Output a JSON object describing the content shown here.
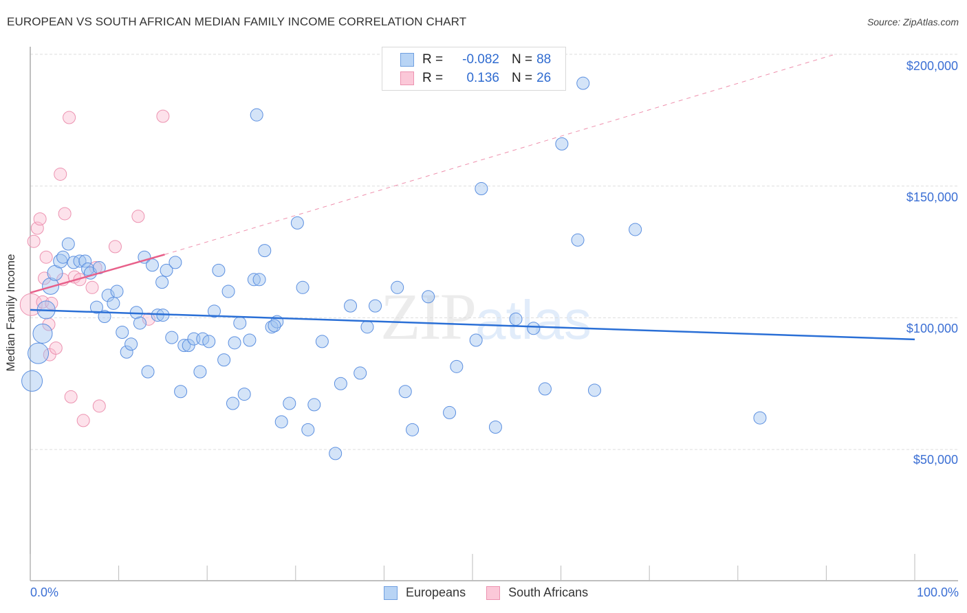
{
  "header": {
    "title": "EUROPEAN VS SOUTH AFRICAN MEDIAN FAMILY INCOME CORRELATION CHART",
    "source": "Source: ZipAtlas.com"
  },
  "legend_top": {
    "rows": [
      {
        "series": "Europeans",
        "r_label": "R =",
        "r_value": "-0.082",
        "n_label": "N =",
        "n_value": "88",
        "color": "#b8d4f5",
        "border": "#6f9fe0"
      },
      {
        "series": "South Africans",
        "r_label": "R =",
        "r_value": "0.136",
        "n_label": "N =",
        "n_value": "26",
        "color": "#fbc8d8",
        "border": "#ec92b0"
      }
    ]
  },
  "legend_bottom": {
    "items": [
      {
        "label": "Europeans",
        "color": "#b8d4f5",
        "border": "#6f9fe0"
      },
      {
        "label": "South Africans",
        "color": "#fbc8d8",
        "border": "#ec92b0"
      }
    ]
  },
  "axes": {
    "ylabel": "Median Family Income",
    "yticks": [
      "$200,000",
      "$150,000",
      "$100,000",
      "$50,000"
    ],
    "xtick_left": "0.0%",
    "xtick_right": "100.0%"
  },
  "watermark": {
    "zip": "ZIP",
    "atlas": "atlas"
  },
  "colors": {
    "europeans_fill": "rgba(160,196,240,0.45)",
    "europeans_stroke": "#5b8fe0",
    "europeans_trend": "#2a6fd6",
    "south_africans_fill": "rgba(250,190,210,0.45)",
    "south_africans_stroke": "#ec92b0",
    "south_africans_trend": "#e8608a",
    "grid": "#dddddd",
    "tick_text": "#3b6fd4"
  },
  "chart_data": {
    "type": "scatter",
    "title": "EUROPEAN VS SOUTH AFRICAN MEDIAN FAMILY INCOME CORRELATION CHART",
    "xlabel": "",
    "ylabel": "Median Family Income",
    "xlim": [
      0,
      100
    ],
    "ylim": [
      0,
      205000
    ],
    "x_tick_labels": [
      "0.0%",
      "100.0%"
    ],
    "y_tick_values": [
      50000,
      100000,
      150000,
      200000
    ],
    "y_tick_labels": [
      "$50,000",
      "$100,000",
      "$150,000",
      "$200,000"
    ],
    "grid": true,
    "legend_position": "bottom-center",
    "series": [
      {
        "name": "Europeans",
        "r": -0.082,
        "n": 88,
        "trend": {
          "x": [
            0,
            100
          ],
          "y": [
            103000,
            91800
          ]
        },
        "points": [
          [
            0.2,
            76000,
            13
          ],
          [
            0.9,
            86500,
            13
          ],
          [
            1.4,
            94000,
            12
          ],
          [
            1.8,
            103000,
            11
          ],
          [
            2.3,
            112000,
            10
          ],
          [
            2.8,
            117000,
            9
          ],
          [
            3.4,
            121500,
            8
          ],
          [
            3.7,
            123000,
            7
          ],
          [
            4.3,
            128000,
            7
          ],
          [
            4.9,
            121000,
            7
          ],
          [
            5.6,
            121500,
            7
          ],
          [
            6.2,
            121500,
            7
          ],
          [
            6.5,
            118500,
            7
          ],
          [
            6.8,
            117000,
            7
          ],
          [
            7.8,
            119000,
            7
          ],
          [
            7.5,
            104000,
            7
          ],
          [
            8.4,
            100500,
            7
          ],
          [
            8.8,
            108500,
            7
          ],
          [
            9.4,
            105500,
            7
          ],
          [
            9.8,
            110000,
            7
          ],
          [
            10.4,
            94500,
            7
          ],
          [
            10.9,
            87000,
            7
          ],
          [
            11.4,
            90000,
            7
          ],
          [
            12.0,
            102000,
            7
          ],
          [
            12.4,
            98000,
            7
          ],
          [
            12.9,
            123000,
            7
          ],
          [
            13.3,
            79500,
            7
          ],
          [
            13.8,
            120000,
            7
          ],
          [
            14.4,
            101000,
            7
          ],
          [
            14.9,
            113500,
            7
          ],
          [
            15.4,
            118000,
            7
          ],
          [
            16.0,
            92500,
            7
          ],
          [
            16.4,
            121000,
            7
          ],
          [
            17.0,
            72000,
            7
          ],
          [
            17.4,
            89500,
            7
          ],
          [
            17.9,
            89500,
            7
          ],
          [
            18.5,
            92000,
            7
          ],
          [
            19.2,
            79500,
            7
          ],
          [
            19.5,
            92000,
            7
          ],
          [
            20.2,
            91000,
            7
          ],
          [
            20.8,
            102500,
            7
          ],
          [
            21.3,
            118000,
            7
          ],
          [
            21.9,
            84000,
            7
          ],
          [
            22.4,
            110000,
            7
          ],
          [
            23.1,
            90500,
            7
          ],
          [
            23.7,
            98000,
            7
          ],
          [
            24.2,
            71000,
            7
          ],
          [
            24.8,
            91500,
            7
          ],
          [
            22.9,
            67500,
            7
          ],
          [
            25.3,
            114500,
            7
          ],
          [
            25.9,
            114500,
            7
          ],
          [
            26.5,
            125500,
            7
          ],
          [
            25.6,
            177000,
            7
          ],
          [
            27.3,
            96500,
            7
          ],
          [
            27.9,
            98500,
            7
          ],
          [
            27.6,
            97000,
            7
          ],
          [
            28.4,
            60500,
            7
          ],
          [
            29.3,
            67500,
            7
          ],
          [
            30.2,
            136000,
            7
          ],
          [
            30.8,
            111500,
            7
          ],
          [
            31.4,
            57500,
            7
          ],
          [
            32.1,
            67000,
            7
          ],
          [
            33.0,
            91000,
            7
          ],
          [
            34.5,
            48500,
            7
          ],
          [
            35.1,
            75000,
            7
          ],
          [
            36.2,
            104500,
            7
          ],
          [
            37.3,
            79000,
            7
          ],
          [
            38.1,
            96500,
            7
          ],
          [
            39.0,
            104500,
            7
          ],
          [
            41.5,
            111500,
            7
          ],
          [
            42.4,
            72000,
            7
          ],
          [
            43.2,
            57500,
            7
          ],
          [
            45.0,
            108000,
            7
          ],
          [
            47.4,
            64000,
            7
          ],
          [
            48.2,
            81500,
            7
          ],
          [
            50.4,
            91500,
            7
          ],
          [
            51.0,
            149000,
            7
          ],
          [
            52.6,
            58500,
            7
          ],
          [
            54.9,
            99500,
            7
          ],
          [
            56.9,
            96000,
            7
          ],
          [
            58.2,
            73000,
            7
          ],
          [
            60.1,
            166000,
            7
          ],
          [
            61.9,
            129500,
            7
          ],
          [
            62.5,
            189000,
            7
          ],
          [
            63.8,
            72500,
            7
          ],
          [
            68.4,
            133500,
            7
          ],
          [
            82.5,
            62000,
            7
          ],
          [
            15.0,
            101000,
            7
          ]
        ]
      },
      {
        "name": "South Africans",
        "r": 0.136,
        "n": 26,
        "trend": {
          "x": [
            0,
            15.2,
            91
          ],
          "y": [
            109500,
            124000,
            200000
          ],
          "solid_until_x": 15.2
        },
        "points": [
          [
            0.1,
            105000,
            14
          ],
          [
            0.4,
            129000,
            7
          ],
          [
            0.8,
            134000,
            7
          ],
          [
            1.1,
            137500,
            7
          ],
          [
            1.4,
            106000,
            7
          ],
          [
            1.6,
            115000,
            7
          ],
          [
            1.8,
            123000,
            7
          ],
          [
            2.1,
            97500,
            7
          ],
          [
            2.2,
            86000,
            7
          ],
          [
            2.4,
            105500,
            7
          ],
          [
            2.9,
            88500,
            7
          ],
          [
            3.4,
            154500,
            7
          ],
          [
            3.7,
            114500,
            7
          ],
          [
            3.9,
            139500,
            7
          ],
          [
            4.4,
            176000,
            7
          ],
          [
            4.6,
            70000,
            7
          ],
          [
            5.0,
            115500,
            7
          ],
          [
            5.6,
            114500,
            7
          ],
          [
            6.0,
            61000,
            7
          ],
          [
            7.0,
            111500,
            7
          ],
          [
            7.4,
            119000,
            7
          ],
          [
            7.8,
            66500,
            7
          ],
          [
            9.6,
            127000,
            7
          ],
          [
            12.2,
            138500,
            7
          ],
          [
            13.4,
            99500,
            7
          ],
          [
            15.0,
            176500,
            7
          ]
        ]
      }
    ]
  }
}
